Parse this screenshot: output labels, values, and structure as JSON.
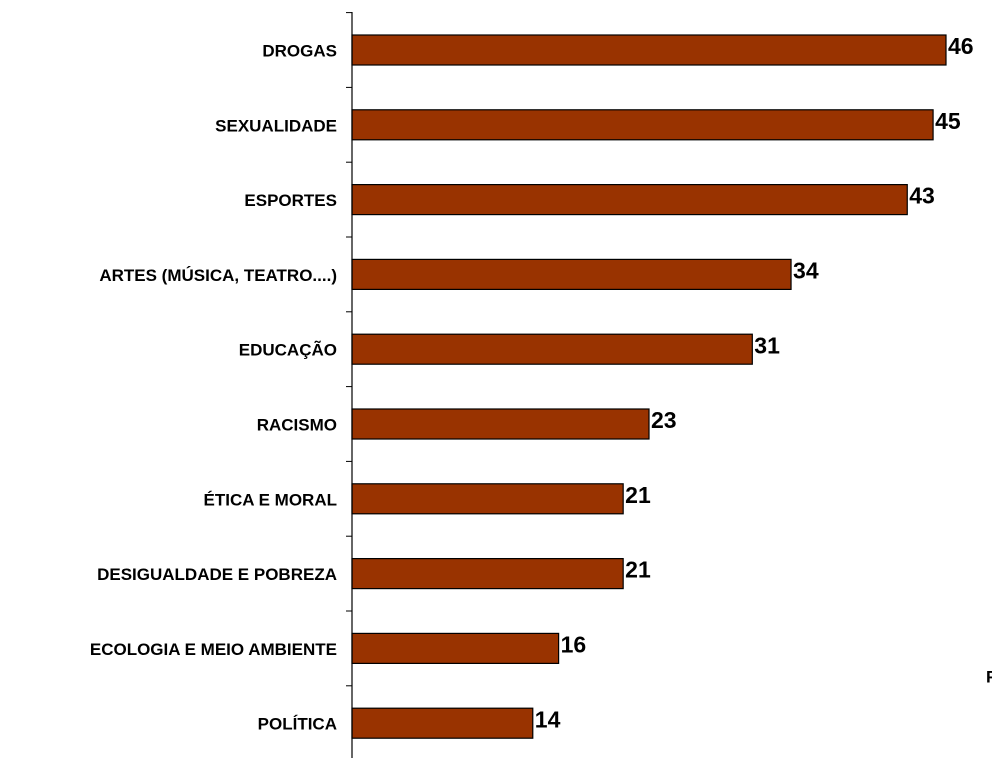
{
  "chart_data": {
    "type": "bar",
    "orientation": "horizontal",
    "categories": [
      "DROGAS",
      "SEXUALIDADE",
      "ESPORTES",
      "ARTES (MÚSICA, TEATRO....)",
      "EDUCAÇÃO",
      "RACISMO",
      "ÉTICA E MORAL",
      "DESIGUALDADE E POBREZA",
      "ECOLOGIA E MEIO AMBIENTE",
      "POLÍTICA"
    ],
    "values": [
      46,
      45,
      43,
      34,
      31,
      23,
      21,
      21,
      16,
      14
    ],
    "color": "#993300",
    "xlim": [
      0,
      46
    ],
    "annotation": "F"
  }
}
